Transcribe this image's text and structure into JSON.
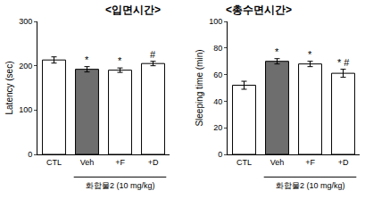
{
  "chart_data": [
    {
      "type": "bar",
      "title": "<입면시간>",
      "y_label": "Latency (sec)",
      "x_label": "화합물2 (10 mg/kg)",
      "categories": [
        "CTL",
        "Veh",
        "+F",
        "+D"
      ],
      "values": [
        213,
        192,
        190,
        205
      ],
      "errors": [
        7,
        6,
        5,
        5
      ],
      "colors": [
        "#ffffff",
        "#6e6e6e",
        "#ffffff",
        "#ffffff"
      ],
      "ylim": [
        0,
        300
      ],
      "yticks": [
        0,
        100,
        200,
        300
      ],
      "grid": false,
      "annotations": [
        {
          "x": "Veh",
          "text": "*"
        },
        {
          "x": "+F",
          "text": "*"
        },
        {
          "x": "+D",
          "text": "#"
        }
      ]
    },
    {
      "type": "bar",
      "title": "<총수면시간>",
      "y_label": "Sleeping time (min)",
      "x_label": "화합물2 (10 mg/kg)",
      "categories": [
        "CTL",
        "Veh",
        "+F",
        "+D"
      ],
      "values": [
        52,
        70,
        68,
        61
      ],
      "errors": [
        3,
        2,
        2,
        3
      ],
      "colors": [
        "#ffffff",
        "#6e6e6e",
        "#ffffff",
        "#ffffff"
      ],
      "ylim": [
        0,
        100
      ],
      "yticks": [
        0,
        20,
        40,
        60,
        80,
        100
      ],
      "grid": false,
      "annotations": [
        {
          "x": "Veh",
          "text": "*"
        },
        {
          "x": "+F",
          "text": "*"
        },
        {
          "x": "+D",
          "text": "* #"
        }
      ]
    }
  ]
}
